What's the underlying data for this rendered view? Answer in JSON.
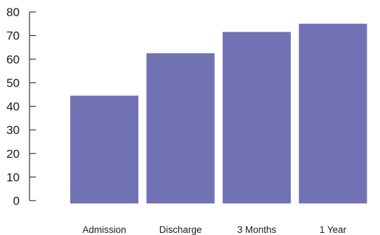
{
  "chart_data": {
    "type": "bar",
    "title": "",
    "xlabel": "",
    "ylabel": "",
    "categories": [
      "Admission",
      "Discharge",
      "3 Months",
      "1 Year"
    ],
    "values": [
      44.5,
      62.5,
      71.5,
      75
    ],
    "ylim": [
      0,
      80
    ],
    "yticks": [
      "0",
      "10",
      "20",
      "30",
      "40",
      "50",
      "60",
      "70",
      "80"
    ],
    "bar_color": "#7173b5",
    "grid": false,
    "legend": "none"
  }
}
